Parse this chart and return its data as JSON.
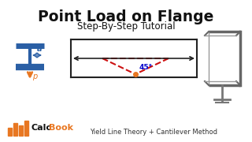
{
  "title": "Point Load on Flange",
  "subtitle": "Step-By-Step Tutorial",
  "footer_text": "Yield Line Theory + Cantilever Method",
  "bg_color": "#ffffff",
  "title_color": "#111111",
  "subtitle_color": "#111111",
  "footer_color": "#333333",
  "beam_color": "#2a5fa5",
  "arrow_color": "#e87722",
  "dashed_color": "#cc1111",
  "angle_color": "#0000cc",
  "angle_label": "45°",
  "label_a": "a",
  "label_p": "p"
}
